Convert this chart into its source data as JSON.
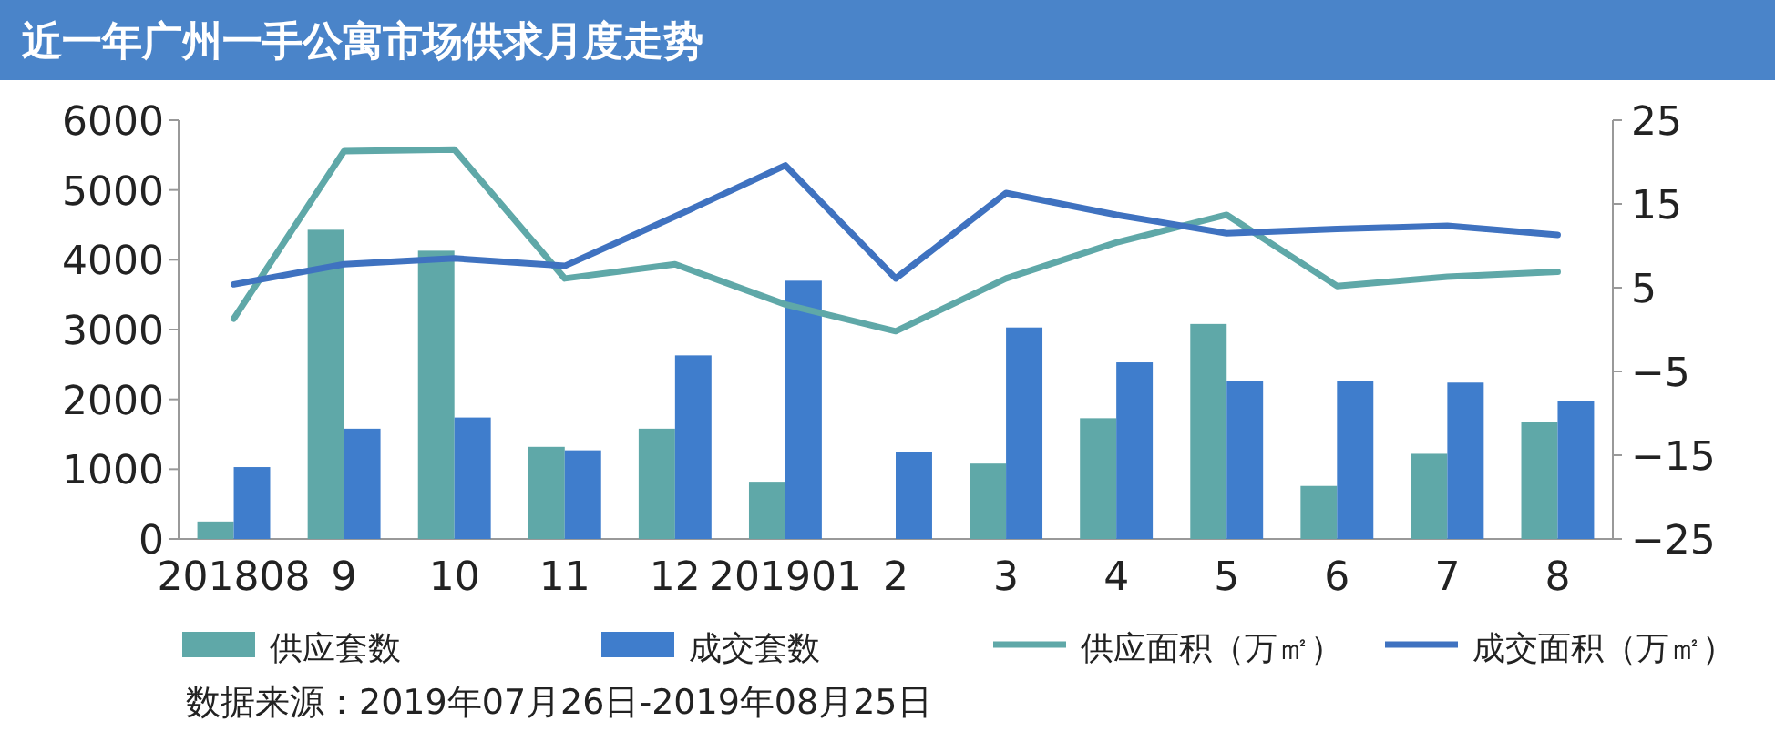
{
  "chart_data": {
    "type": "bar",
    "title": "近一年广州一手公寓市场供求月度走势",
    "categories": [
      "201808",
      "9",
      "10",
      "11",
      "12",
      "201901",
      "2",
      "3",
      "4",
      "5",
      "6",
      "7",
      "8"
    ],
    "series": [
      {
        "name": "供应套数",
        "color": "#5fa8a8",
        "values": [
          250,
          4430,
          4130,
          1320,
          1580,
          820,
          0,
          1080,
          1730,
          3080,
          760,
          1220,
          1680
        ]
      },
      {
        "name": "成交套数",
        "color": "#3f7dcc",
        "values": [
          1030,
          1580,
          1740,
          1270,
          2630,
          3700,
          1240,
          3030,
          2530,
          2260,
          2260,
          2240,
          1980
        ]
      },
      {
        "name": "供应面积（万㎡）",
        "type": "line",
        "axis": "y2",
        "color": "#5fa8a8",
        "values": [
          1.3,
          21.3,
          21.5,
          6.1,
          7.8,
          3.0,
          -0.2,
          6.1,
          10.4,
          13.7,
          5.2,
          6.3,
          6.9
        ]
      },
      {
        "name": "成交面积（万㎡）",
        "type": "line",
        "axis": "y2",
        "color": "#3f72c0",
        "values": [
          5.4,
          7.8,
          8.5,
          7.6,
          13.5,
          19.6,
          6.1,
          16.3,
          13.7,
          11.5,
          12.0,
          12.4,
          11.3
        ]
      }
    ],
    "ylim": [
      0,
      6000
    ],
    "yticks": [
      0,
      1000,
      2000,
      3000,
      4000,
      5000,
      6000
    ],
    "y2lim": [
      -25,
      25
    ],
    "y2ticks": [
      {
        "value": 25,
        "label": "25"
      },
      {
        "value": 15,
        "label": "15"
      },
      {
        "value": 5,
        "label": "5"
      },
      {
        "value": -5,
        "label": "−5"
      },
      {
        "value": -15,
        "label": "−15"
      },
      {
        "value": -25,
        "label": "−25"
      }
    ],
    "grid": false,
    "legend": "bottom",
    "annotations": [
      "数据来源：2019年07月26日-2019年08月25日"
    ]
  }
}
